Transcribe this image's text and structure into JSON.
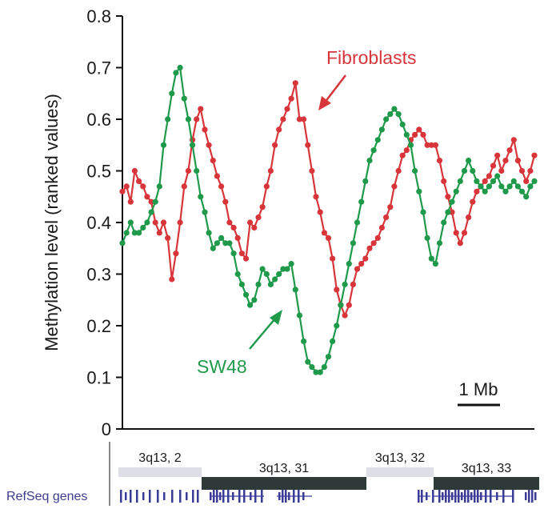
{
  "chart_data": {
    "type": "line",
    "ylabel": "Methylation level (ranked values)",
    "xlabel": "",
    "title": "",
    "ylim": [
      0,
      0.8
    ],
    "xlim": [
      0,
      100
    ],
    "yticks": [
      "0",
      "0.1",
      "0.2",
      "0.3",
      "0.4",
      "0.5",
      "0.6",
      "0.7",
      "0.8"
    ],
    "grid": false,
    "series": [
      {
        "name": "Fibroblasts",
        "color": "#d8353a",
        "x": [
          0,
          1,
          2,
          3,
          4,
          5,
          6,
          7,
          8,
          9,
          10,
          11,
          12,
          13,
          14,
          15,
          16,
          17,
          18,
          19,
          20,
          21,
          22,
          23,
          24,
          25,
          26,
          27,
          28,
          29,
          30,
          31,
          32,
          33,
          34,
          35,
          36,
          37,
          38,
          39,
          40,
          41,
          42,
          43,
          44,
          45,
          46,
          47,
          48,
          49,
          50,
          51,
          52,
          53,
          54,
          55,
          56,
          57,
          58,
          59,
          60,
          61,
          62,
          63,
          64,
          65,
          66,
          67,
          68,
          69,
          70,
          71,
          72,
          73,
          74,
          75,
          76,
          77,
          78,
          79,
          80,
          81,
          82,
          83,
          84,
          85,
          86,
          87,
          88,
          89,
          90,
          91,
          92,
          93,
          94,
          95,
          96,
          97,
          98,
          99,
          100
        ],
        "values": [
          0.46,
          0.47,
          0.44,
          0.5,
          0.48,
          0.47,
          0.45,
          0.44,
          0.4,
          0.38,
          0.4,
          0.37,
          0.29,
          0.34,
          0.4,
          0.47,
          0.5,
          0.56,
          0.6,
          0.62,
          0.58,
          0.55,
          0.52,
          0.49,
          0.47,
          0.44,
          0.4,
          0.39,
          0.37,
          0.34,
          0.33,
          0.4,
          0.39,
          0.41,
          0.43,
          0.47,
          0.5,
          0.55,
          0.58,
          0.6,
          0.62,
          0.64,
          0.67,
          0.6,
          0.6,
          0.55,
          0.5,
          0.45,
          0.42,
          0.38,
          0.37,
          0.33,
          0.27,
          0.24,
          0.22,
          0.24,
          0.28,
          0.31,
          0.32,
          0.33,
          0.35,
          0.36,
          0.37,
          0.39,
          0.41,
          0.43,
          0.47,
          0.5,
          0.53,
          0.54,
          0.56,
          0.57,
          0.58,
          0.57,
          0.55,
          0.55,
          0.55,
          0.52,
          0.48,
          0.45,
          0.42,
          0.38,
          0.36,
          0.38,
          0.41,
          0.44,
          0.46,
          0.47,
          0.48,
          0.49,
          0.51,
          0.53,
          0.5,
          0.52,
          0.54,
          0.56,
          0.52,
          0.5,
          0.48,
          0.5,
          0.53
        ]
      },
      {
        "name": "SW48",
        "color": "#1f9a4b",
        "x": [
          0,
          1,
          2,
          3,
          4,
          5,
          6,
          7,
          8,
          9,
          10,
          11,
          12,
          13,
          14,
          15,
          16,
          17,
          18,
          19,
          20,
          21,
          22,
          23,
          24,
          25,
          26,
          27,
          28,
          29,
          30,
          31,
          32,
          33,
          34,
          35,
          36,
          37,
          38,
          39,
          40,
          41,
          42,
          43,
          44,
          45,
          46,
          47,
          48,
          49,
          50,
          51,
          52,
          53,
          54,
          55,
          56,
          57,
          58,
          59,
          60,
          61,
          62,
          63,
          64,
          65,
          66,
          67,
          68,
          69,
          70,
          71,
          72,
          73,
          74,
          75,
          76,
          77,
          78,
          79,
          80,
          81,
          82,
          83,
          84,
          85,
          86,
          87,
          88,
          89,
          90,
          91,
          92,
          93,
          94,
          95,
          96,
          97,
          98,
          99,
          100
        ],
        "values": [
          0.36,
          0.38,
          0.4,
          0.38,
          0.38,
          0.39,
          0.4,
          0.42,
          0.44,
          0.47,
          0.55,
          0.6,
          0.65,
          0.69,
          0.7,
          0.64,
          0.6,
          0.55,
          0.5,
          0.45,
          0.42,
          0.38,
          0.35,
          0.36,
          0.37,
          0.36,
          0.36,
          0.34,
          0.3,
          0.28,
          0.26,
          0.24,
          0.25,
          0.28,
          0.31,
          0.3,
          0.28,
          0.29,
          0.3,
          0.31,
          0.31,
          0.32,
          0.27,
          0.22,
          0.17,
          0.13,
          0.12,
          0.11,
          0.11,
          0.12,
          0.14,
          0.17,
          0.2,
          0.24,
          0.28,
          0.32,
          0.36,
          0.4,
          0.44,
          0.48,
          0.52,
          0.54,
          0.56,
          0.58,
          0.6,
          0.61,
          0.62,
          0.61,
          0.59,
          0.57,
          0.55,
          0.5,
          0.46,
          0.42,
          0.37,
          0.33,
          0.32,
          0.36,
          0.4,
          0.42,
          0.44,
          0.46,
          0.48,
          0.5,
          0.52,
          0.5,
          0.48,
          0.47,
          0.46,
          0.47,
          0.48,
          0.49,
          0.47,
          0.46,
          0.47,
          0.48,
          0.47,
          0.46,
          0.45,
          0.47,
          0.48
        ]
      }
    ],
    "annotations": {
      "fibroblasts_label": "Fibroblasts",
      "sw48_label": "SW48",
      "scale_bar_label": "1 Mb"
    },
    "bands": [
      {
        "label": "3q13, 2",
        "shade": "light"
      },
      {
        "label": "3q13, 31",
        "shade": "dark"
      },
      {
        "label": "3q13, 32",
        "shade": "light"
      },
      {
        "label": "3q13, 33",
        "shade": "dark"
      }
    ],
    "track_label": "RefSeq genes"
  }
}
